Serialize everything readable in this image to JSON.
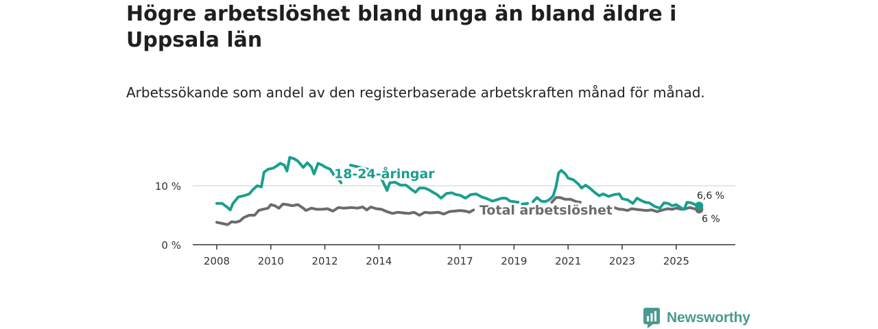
{
  "title": "Högre arbetslöshet bland unga än bland äldre i Uppsala län",
  "subtitle": "Arbetssökande som andel av den registerbaserade arbetskraften månad för månad.",
  "brand": {
    "name": "Newsworthy"
  },
  "chart_data": {
    "type": "line",
    "xlim": [
      2008,
      2026.3
    ],
    "ylim": [
      0,
      16
    ],
    "x_ticks": [
      2008,
      2010,
      2012,
      2014,
      2017,
      2019,
      2021,
      2023,
      2025
    ],
    "x_tick_labels": [
      "2008",
      "2010",
      "2012",
      "2014",
      "2017",
      "2019",
      "2021",
      "2023",
      "2025"
    ],
    "y_ticks": [
      0,
      10
    ],
    "y_tick_labels": [
      "0 %",
      "10 %"
    ],
    "series": [
      {
        "name": "18-24-åringar",
        "label": "18-24-åringar",
        "color": "#1a9e8f",
        "end_label": "6,6 %",
        "points": [
          [
            2008.0,
            7.0
          ],
          [
            2008.2,
            7.0
          ],
          [
            2008.4,
            6.3
          ],
          [
            2008.5,
            5.9
          ],
          [
            2008.6,
            7.0
          ],
          [
            2008.8,
            8.1
          ],
          [
            2009.0,
            8.3
          ],
          [
            2009.2,
            8.6
          ],
          [
            2009.35,
            9.4
          ],
          [
            2009.5,
            10.0
          ],
          [
            2009.65,
            9.8
          ],
          [
            2009.75,
            12.3
          ],
          [
            2009.9,
            12.8
          ],
          [
            2010.1,
            13.0
          ],
          [
            2010.2,
            13.3
          ],
          [
            2010.35,
            13.8
          ],
          [
            2010.5,
            13.5
          ],
          [
            2010.6,
            12.5
          ],
          [
            2010.7,
            14.8
          ],
          [
            2010.85,
            14.6
          ],
          [
            2011.0,
            14.2
          ],
          [
            2011.2,
            13.1
          ],
          [
            2011.35,
            13.9
          ],
          [
            2011.5,
            13.2
          ],
          [
            2011.6,
            12.0
          ],
          [
            2011.75,
            13.8
          ],
          [
            2011.9,
            13.5
          ],
          [
            2012.0,
            13.2
          ],
          [
            2012.2,
            12.8
          ],
          [
            2012.35,
            11.7
          ],
          [
            2012.5,
            11.2
          ],
          [
            2012.6,
            10.5
          ],
          [
            2012.95,
            13.5
          ],
          [
            2013.6,
            12.8
          ],
          [
            2014.1,
            11.2
          ],
          [
            2014.3,
            9.2
          ],
          [
            2014.4,
            10.5
          ],
          [
            2014.6,
            10.6
          ],
          [
            2014.8,
            10.1
          ],
          [
            2015.0,
            10.1
          ],
          [
            2015.2,
            9.4
          ],
          [
            2015.35,
            8.9
          ],
          [
            2015.5,
            9.6
          ],
          [
            2015.7,
            9.6
          ],
          [
            2015.85,
            9.3
          ],
          [
            2016.0,
            8.9
          ],
          [
            2016.15,
            8.5
          ],
          [
            2016.3,
            7.9
          ],
          [
            2016.5,
            8.7
          ],
          [
            2016.7,
            8.8
          ],
          [
            2016.85,
            8.5
          ],
          [
            2017.0,
            8.4
          ],
          [
            2017.2,
            7.9
          ],
          [
            2017.4,
            8.5
          ],
          [
            2017.6,
            8.6
          ],
          [
            2017.8,
            8.1
          ],
          [
            2018.0,
            7.8
          ],
          [
            2018.2,
            7.4
          ],
          [
            2018.35,
            7.6
          ],
          [
            2018.55,
            7.9
          ],
          [
            2018.7,
            7.9
          ],
          [
            2018.85,
            7.4
          ],
          [
            2019.0,
            7.3
          ],
          [
            2019.15,
            7.2
          ],
          [
            2019.3,
            6.9
          ],
          [
            2019.5,
            7.0
          ],
          [
            2019.7,
            7.3
          ],
          [
            2019.85,
            8.0
          ],
          [
            2020.0,
            7.4
          ],
          [
            2020.15,
            7.3
          ],
          [
            2020.3,
            7.6
          ],
          [
            2020.45,
            8.3
          ],
          [
            2020.55,
            9.8
          ],
          [
            2020.65,
            12.2
          ],
          [
            2020.75,
            12.6
          ],
          [
            2020.9,
            12.0
          ],
          [
            2021.0,
            11.3
          ],
          [
            2021.2,
            11.0
          ],
          [
            2021.4,
            10.2
          ],
          [
            2021.5,
            9.6
          ],
          [
            2021.65,
            10.1
          ],
          [
            2021.8,
            9.6
          ],
          [
            2022.0,
            8.8
          ],
          [
            2022.15,
            8.3
          ],
          [
            2022.3,
            8.6
          ],
          [
            2022.5,
            8.2
          ],
          [
            2022.7,
            8.5
          ],
          [
            2022.9,
            8.6
          ],
          [
            2023.0,
            7.8
          ],
          [
            2023.2,
            7.6
          ],
          [
            2023.4,
            7.0
          ],
          [
            2023.55,
            7.9
          ],
          [
            2023.7,
            7.5
          ],
          [
            2023.85,
            7.2
          ],
          [
            2024.0,
            7.1
          ],
          [
            2024.2,
            6.5
          ],
          [
            2024.4,
            6.2
          ],
          [
            2024.55,
            7.1
          ],
          [
            2024.7,
            7.0
          ],
          [
            2024.85,
            6.6
          ],
          [
            2025.0,
            6.8
          ],
          [
            2025.2,
            6.2
          ],
          [
            2025.3,
            6.0
          ],
          [
            2025.4,
            7.2
          ],
          [
            2025.55,
            7.1
          ],
          [
            2025.7,
            6.8
          ],
          [
            2025.85,
            6.6
          ]
        ],
        "gaps_after": [
          2012.6,
          2013.6,
          2019.15,
          2019.5
        ]
      },
      {
        "name": "Total arbetslöshet",
        "label": "Total arbetslöshet",
        "color": "#6b6b6b",
        "end_label": "6 %",
        "points": [
          [
            2008.0,
            3.8
          ],
          [
            2008.2,
            3.6
          ],
          [
            2008.4,
            3.4
          ],
          [
            2008.55,
            3.9
          ],
          [
            2008.7,
            3.8
          ],
          [
            2008.85,
            4.0
          ],
          [
            2009.0,
            4.6
          ],
          [
            2009.2,
            5.0
          ],
          [
            2009.4,
            5.0
          ],
          [
            2009.55,
            5.8
          ],
          [
            2009.7,
            6.0
          ],
          [
            2009.9,
            6.2
          ],
          [
            2010.0,
            6.8
          ],
          [
            2010.15,
            6.6
          ],
          [
            2010.3,
            6.2
          ],
          [
            2010.45,
            6.9
          ],
          [
            2010.6,
            6.8
          ],
          [
            2010.8,
            6.6
          ],
          [
            2011.0,
            6.8
          ],
          [
            2011.2,
            6.2
          ],
          [
            2011.3,
            5.8
          ],
          [
            2011.5,
            6.2
          ],
          [
            2011.7,
            6.0
          ],
          [
            2011.9,
            6.0
          ],
          [
            2012.1,
            6.1
          ],
          [
            2012.3,
            5.7
          ],
          [
            2012.5,
            6.3
          ],
          [
            2012.7,
            6.2
          ],
          [
            2013.0,
            6.3
          ],
          [
            2013.2,
            6.2
          ],
          [
            2013.4,
            6.4
          ],
          [
            2013.55,
            5.9
          ],
          [
            2013.7,
            6.4
          ],
          [
            2013.9,
            6.1
          ],
          [
            2014.1,
            6.0
          ],
          [
            2014.3,
            5.6
          ],
          [
            2014.5,
            5.3
          ],
          [
            2014.7,
            5.5
          ],
          [
            2014.9,
            5.4
          ],
          [
            2015.1,
            5.3
          ],
          [
            2015.3,
            5.5
          ],
          [
            2015.5,
            5.0
          ],
          [
            2015.7,
            5.5
          ],
          [
            2015.9,
            5.4
          ],
          [
            2016.2,
            5.5
          ],
          [
            2016.4,
            5.2
          ],
          [
            2016.6,
            5.6
          ],
          [
            2016.8,
            5.7
          ],
          [
            2017.0,
            5.8
          ],
          [
            2017.2,
            5.7
          ],
          [
            2017.35,
            5.5
          ],
          [
            2017.5,
            5.9
          ],
          [
            2020.4,
            7.2
          ],
          [
            2020.55,
            8.0
          ],
          [
            2020.7,
            8.0
          ],
          [
            2020.9,
            7.7
          ],
          [
            2021.1,
            7.7
          ],
          [
            2021.3,
            7.3
          ],
          [
            2021.45,
            7.2
          ],
          [
            2022.5,
            6.3
          ],
          [
            2022.7,
            6.3
          ],
          [
            2022.9,
            6.0
          ],
          [
            2023.0,
            6.0
          ],
          [
            2023.2,
            5.8
          ],
          [
            2023.35,
            6.1
          ],
          [
            2023.5,
            6.0
          ],
          [
            2023.7,
            5.9
          ],
          [
            2023.9,
            5.8
          ],
          [
            2024.1,
            5.9
          ],
          [
            2024.3,
            5.6
          ],
          [
            2024.5,
            5.9
          ],
          [
            2024.7,
            6.1
          ],
          [
            2024.85,
            6.0
          ],
          [
            2025.0,
            6.2
          ],
          [
            2025.2,
            6.0
          ],
          [
            2025.35,
            6.1
          ],
          [
            2025.5,
            6.3
          ],
          [
            2025.65,
            6.1
          ],
          [
            2025.85,
            6.0
          ]
        ],
        "gaps_after": [
          2017.5,
          2021.45
        ]
      }
    ]
  }
}
